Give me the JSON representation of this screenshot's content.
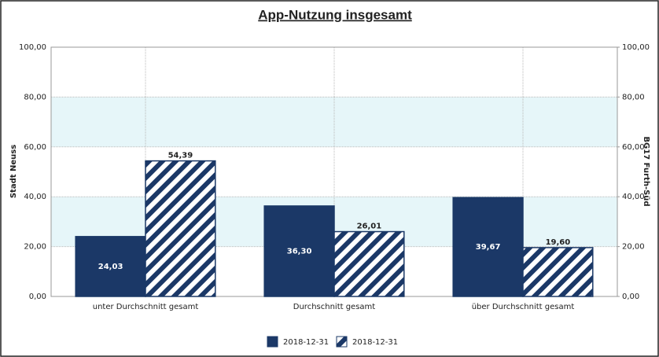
{
  "chart_data": {
    "type": "bar",
    "title": "App-Nutzung insgesamt",
    "ylabel": "Stadt Neuss",
    "y2label": "BG17 Furth-Süd",
    "categories": [
      "unter Durchschnitt gesamt",
      "Durchschnitt gesamt",
      "über Durchschnitt gesamt"
    ],
    "series": [
      {
        "name": "2018-12-31",
        "color": "#1b3867",
        "fill_style": "solid",
        "values": [
          24.03,
          36.3,
          39.67
        ],
        "value_labels": [
          "24,03",
          "36,30",
          "39,67"
        ]
      },
      {
        "name": "2018-12-31",
        "color": "#1b3867",
        "fill_style": "hatched",
        "values": [
          54.39,
          26.01,
          19.6
        ],
        "value_labels": [
          "54,39",
          "26,01",
          "19,60"
        ]
      }
    ],
    "ylim": [
      0,
      100
    ],
    "yticks": [
      {
        "value": 0,
        "label": "0,00"
      },
      {
        "value": 20,
        "label": "20,00"
      },
      {
        "value": 40,
        "label": "40,00"
      },
      {
        "value": 60,
        "label": "60,00"
      },
      {
        "value": 80,
        "label": "80,00"
      },
      {
        "value": 100,
        "label": "100,00"
      }
    ],
    "y2lim": [
      0,
      100
    ],
    "y2ticks": [
      {
        "value": 0,
        "label": "0,00"
      },
      {
        "value": 20,
        "label": "20,00"
      },
      {
        "value": 40,
        "label": "40,00"
      },
      {
        "value": 60,
        "label": "60,00"
      },
      {
        "value": 80,
        "label": "80,00"
      },
      {
        "value": 100,
        "label": "100,00"
      }
    ],
    "grid": true,
    "legend": "bottom"
  }
}
